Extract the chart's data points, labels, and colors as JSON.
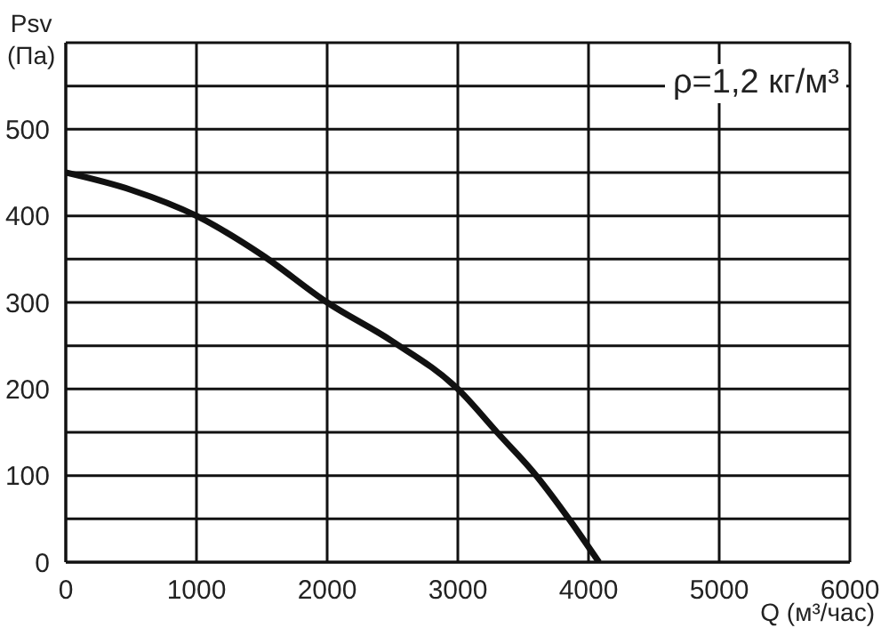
{
  "chart_data": {
    "type": "line",
    "xlabel": "Q (м³/час)",
    "ylabel": "Psv (Па)",
    "annotations": [
      "ρ=1,2 кг/м³"
    ],
    "x": [
      0,
      500,
      1000,
      1500,
      2000,
      2500,
      3000,
      3300,
      3600,
      3850,
      4080
    ],
    "series": [
      {
        "color": "#111111",
        "values": [
          450,
          430,
          400,
          355,
          300,
          255,
          200,
          150,
          100,
          50,
          0
        ]
      }
    ],
    "xlim": [
      0,
      6000
    ],
    "xticks": [
      0,
      1000,
      2000,
      3000,
      4000,
      5000,
      6000
    ],
    "ylim": [
      0,
      600
    ],
    "yticks": [
      0,
      {
        "value": 50,
        "label": null
      },
      100,
      {
        "value": 150,
        "label": null
      },
      200,
      {
        "value": 250,
        "label": null
      },
      300,
      {
        "value": 350,
        "label": null
      },
      400,
      {
        "value": 450,
        "label": null
      },
      500,
      {
        "value": 550,
        "label": null
      },
      {
        "value": 600,
        "label": null
      }
    ],
    "grid": true,
    "marker": "none",
    "line_style": "solid"
  }
}
